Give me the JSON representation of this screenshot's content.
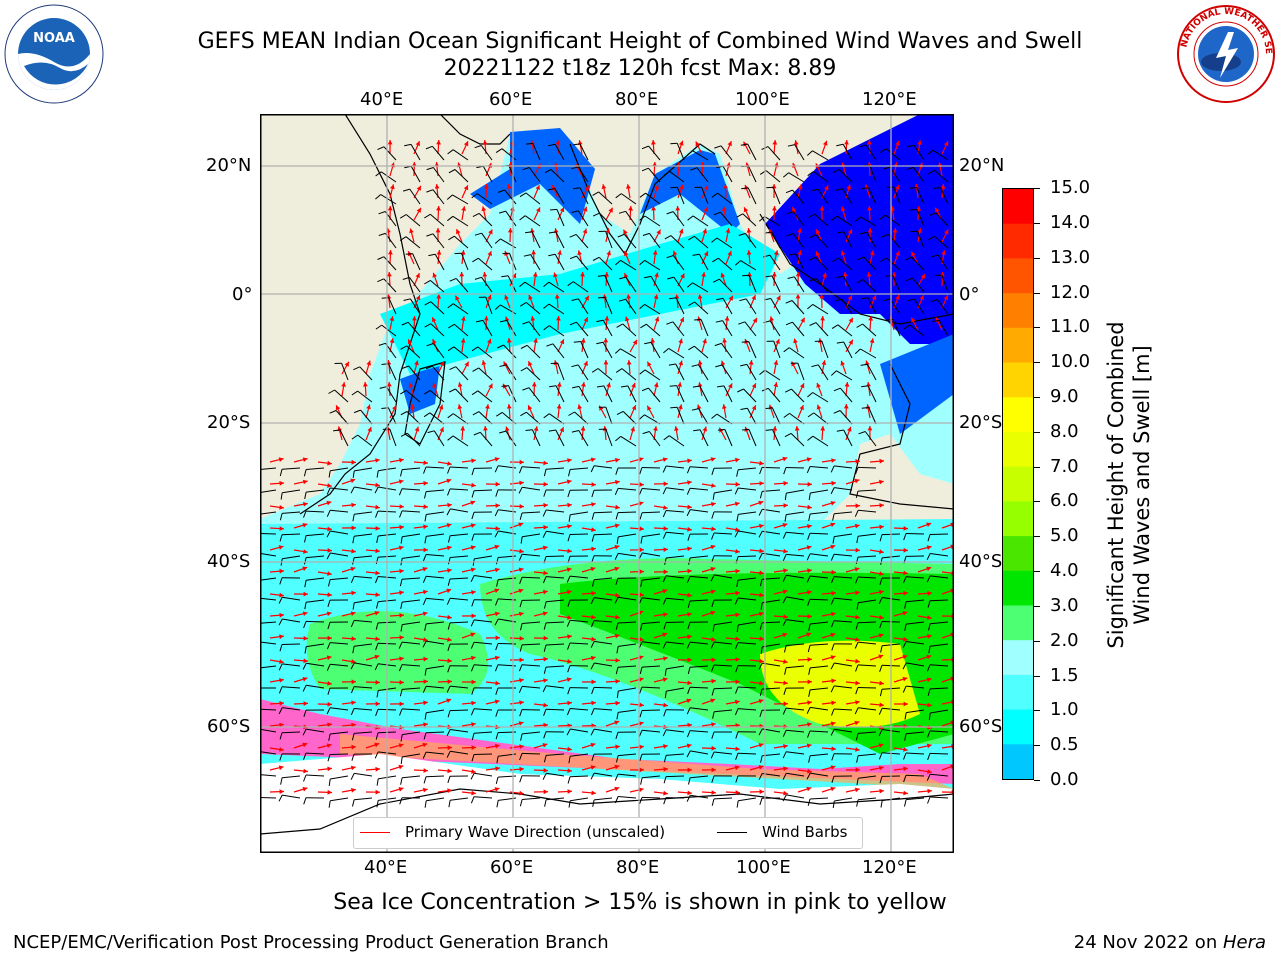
{
  "header": {
    "title": "GEFS MEAN Indian Ocean Significant Height of Combined Wind Waves and Swell",
    "subtitle": "20221122 t18z 120h fcst   Max: 8.89"
  },
  "logos": {
    "left_text": "NOAA",
    "left_ring_text": "NATIONAL OCEANIC AND ATMOSPHERIC ADMINISTRATION · U.S. DEPARTMENT OF COMMERCE",
    "right_ring_text": "NATIONAL WEATHER SERVICE"
  },
  "map": {
    "lon_ticks_top": [
      "40°E",
      "60°E",
      "80°E",
      "100°E",
      "120°E"
    ],
    "lon_ticks_bottom": [
      "40°E",
      "60°E",
      "80°E",
      "100°E",
      "120°E"
    ],
    "lat_ticks_left": [
      "20°N",
      "0°",
      "20°S",
      "40°S",
      "60°S"
    ],
    "lat_ticks_right": [
      "20°N",
      "0°",
      "20°S",
      "40°S",
      "60°S"
    ],
    "legend": {
      "wave_label": "Primary Wave Direction (unscaled)",
      "barb_label": "Wind Barbs"
    },
    "colors": {
      "land": "#efeedd",
      "ocean_low": "#00ffff",
      "ocean_mid": "#a0ffff",
      "ocean_green": "#4dff73",
      "ocean_strong_green": "#00e600",
      "ocean_yellow": "#eaff00",
      "ice": "#ff66cc",
      "arrow": "#ff0000",
      "barb": "#000000"
    }
  },
  "colorbar": {
    "ticks": [
      "15.0",
      "14.0",
      "13.0",
      "12.0",
      "11.0",
      "10.0",
      "9.0",
      "8.0",
      "7.0",
      "6.0",
      "5.0",
      "4.0",
      "3.0",
      "2.0",
      "1.5",
      "1.0",
      "0.5",
      "0.0"
    ],
    "label_line1": "Significant Height of Combined",
    "label_line2": "Wind Waves and Swell [m]",
    "colors": [
      "#ff0000",
      "#ff2a00",
      "#ff5500",
      "#ff8000",
      "#ffaa00",
      "#ffd400",
      "#ffff00",
      "#eaff00",
      "#c8ff00",
      "#96ff00",
      "#4be600",
      "#00e600",
      "#4dff73",
      "#a0ffff",
      "#50ffff",
      "#00ffff",
      "#00c8ff",
      "#0080ff",
      "#0000ff"
    ]
  },
  "caption": "Sea Ice Concentration > 15% is shown in pink to yellow",
  "footer": {
    "left": "NCEP/EMC/Verification Post Processing Product Generation Branch",
    "right_date": "24 Nov 2022 on ",
    "right_host": "Hera"
  }
}
